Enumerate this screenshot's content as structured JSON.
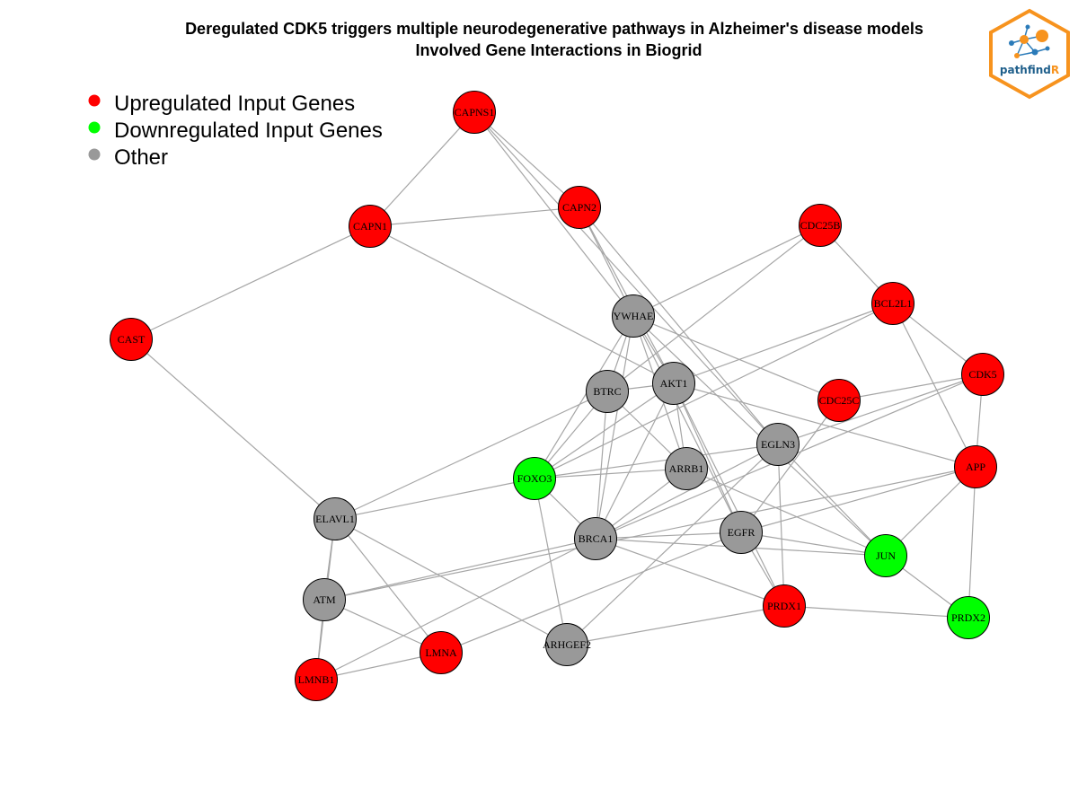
{
  "title": {
    "line1": "Deregulated CDK5 triggers multiple neurodegenerative pathways in Alzheimer's disease models",
    "line2": "Involved Gene Interactions in Biogrid"
  },
  "legend": [
    {
      "label": "Upregulated Input Genes",
      "color": "#ff0000"
    },
    {
      "label": "Downregulated Input Genes",
      "color": "#00ff00"
    },
    {
      "label": "Other",
      "color": "#999999"
    }
  ],
  "logo": {
    "text_main": "pathfind",
    "text_accent": "R",
    "accent_color": "#f7931e",
    "main_color": "#1f5f8b"
  },
  "colors": {
    "up": "#ff0000",
    "down": "#00ff00",
    "other": "#999999",
    "edge": "#a6a6a6"
  },
  "nodes": [
    {
      "id": "CAPNS1",
      "type": "up"
    },
    {
      "id": "CAPN2",
      "type": "up"
    },
    {
      "id": "CAPN1",
      "type": "up"
    },
    {
      "id": "CDC25B",
      "type": "up"
    },
    {
      "id": "CAST",
      "type": "up"
    },
    {
      "id": "BCL2L1",
      "type": "up"
    },
    {
      "id": "YWHAE",
      "type": "other"
    },
    {
      "id": "CDK5",
      "type": "up"
    },
    {
      "id": "AKT1",
      "type": "other"
    },
    {
      "id": "BTRC",
      "type": "other"
    },
    {
      "id": "CDC25C",
      "type": "up"
    },
    {
      "id": "EGLN3",
      "type": "other"
    },
    {
      "id": "APP",
      "type": "up"
    },
    {
      "id": "ARRB1",
      "type": "other"
    },
    {
      "id": "FOXO3",
      "type": "down"
    },
    {
      "id": "ELAVL1",
      "type": "other"
    },
    {
      "id": "EGFR",
      "type": "other"
    },
    {
      "id": "BRCA1",
      "type": "other"
    },
    {
      "id": "JUN",
      "type": "down"
    },
    {
      "id": "ATM",
      "type": "other"
    },
    {
      "id": "PRDX1",
      "type": "up"
    },
    {
      "id": "PRDX2",
      "type": "down"
    },
    {
      "id": "ARHGEF2",
      "type": "other"
    },
    {
      "id": "LMNA",
      "type": "up"
    },
    {
      "id": "LMNB1",
      "type": "up"
    }
  ],
  "edges": [
    [
      "CAPNS1",
      "CAPN1"
    ],
    [
      "CAPNS1",
      "CAPN2"
    ],
    [
      "CAPNS1",
      "YWHAE"
    ],
    [
      "CAPNS1",
      "EGLN3"
    ],
    [
      "CAPN1",
      "CAPN2"
    ],
    [
      "CAPN1",
      "CAST"
    ],
    [
      "CAPN1",
      "AKT1"
    ],
    [
      "CAPN2",
      "YWHAE"
    ],
    [
      "CAPN2",
      "AKT1"
    ],
    [
      "CAPN2",
      "EGLN3"
    ],
    [
      "CDC25B",
      "YWHAE"
    ],
    [
      "CDC25B",
      "BCL2L1"
    ],
    [
      "CDC25B",
      "BTRC"
    ],
    [
      "CAST",
      "ELAVL1"
    ],
    [
      "BCL2L1",
      "CDK5"
    ],
    [
      "BCL2L1",
      "APP"
    ],
    [
      "BCL2L1",
      "AKT1"
    ],
    [
      "BCL2L1",
      "FOXO3"
    ],
    [
      "YWHAE",
      "BTRC"
    ],
    [
      "YWHAE",
      "AKT1"
    ],
    [
      "YWHAE",
      "CDC25C"
    ],
    [
      "YWHAE",
      "FOXO3"
    ],
    [
      "YWHAE",
      "ARRB1"
    ],
    [
      "YWHAE",
      "EGFR"
    ],
    [
      "YWHAE",
      "BRCA1"
    ],
    [
      "YWHAE",
      "JUN"
    ],
    [
      "CDK5",
      "CDC25C"
    ],
    [
      "CDK5",
      "APP"
    ],
    [
      "CDK5",
      "EGLN3"
    ],
    [
      "CDK5",
      "BRCA1"
    ],
    [
      "AKT1",
      "BTRC"
    ],
    [
      "AKT1",
      "FOXO3"
    ],
    [
      "AKT1",
      "APP"
    ],
    [
      "AKT1",
      "EGFR"
    ],
    [
      "AKT1",
      "BRCA1"
    ],
    [
      "AKT1",
      "ARRB1"
    ],
    [
      "AKT1",
      "PRDX1"
    ],
    [
      "BTRC",
      "ELAVL1"
    ],
    [
      "BTRC",
      "FOXO3"
    ],
    [
      "BTRC",
      "BRCA1"
    ],
    [
      "BTRC",
      "ARRB1"
    ],
    [
      "CDC25C",
      "EGFR"
    ],
    [
      "EGLN3",
      "FOXO3"
    ],
    [
      "EGLN3",
      "BRCA1"
    ],
    [
      "EGLN3",
      "JUN"
    ],
    [
      "EGLN3",
      "PRDX1"
    ],
    [
      "EGLN3",
      "ARHGEF2"
    ],
    [
      "APP",
      "EGFR"
    ],
    [
      "APP",
      "JUN"
    ],
    [
      "APP",
      "PRDX2"
    ],
    [
      "APP",
      "ATM"
    ],
    [
      "ARRB1",
      "JUN"
    ],
    [
      "ARRB1",
      "FOXO3"
    ],
    [
      "ARRB1",
      "BRCA1"
    ],
    [
      "FOXO3",
      "ARHGEF2"
    ],
    [
      "FOXO3",
      "BRCA1"
    ],
    [
      "FOXO3",
      "ELAVL1"
    ],
    [
      "ELAVL1",
      "ATM"
    ],
    [
      "ELAVL1",
      "LMNA"
    ],
    [
      "ELAVL1",
      "ARHGEF2"
    ],
    [
      "ELAVL1",
      "LMNB1"
    ],
    [
      "EGFR",
      "BRCA1"
    ],
    [
      "EGFR",
      "PRDX1"
    ],
    [
      "EGFR",
      "JUN"
    ],
    [
      "EGFR",
      "LMNA"
    ],
    [
      "BRCA1",
      "ATM"
    ],
    [
      "BRCA1",
      "JUN"
    ],
    [
      "BRCA1",
      "LMNB1"
    ],
    [
      "BRCA1",
      "PRDX1"
    ],
    [
      "JUN",
      "PRDX2"
    ],
    [
      "ATM",
      "LMNA"
    ],
    [
      "ATM",
      "LMNB1"
    ],
    [
      "PRDX1",
      "PRDX2"
    ],
    [
      "PRDX1",
      "ARHGEF2"
    ],
    [
      "LMNA",
      "LMNB1"
    ]
  ]
}
